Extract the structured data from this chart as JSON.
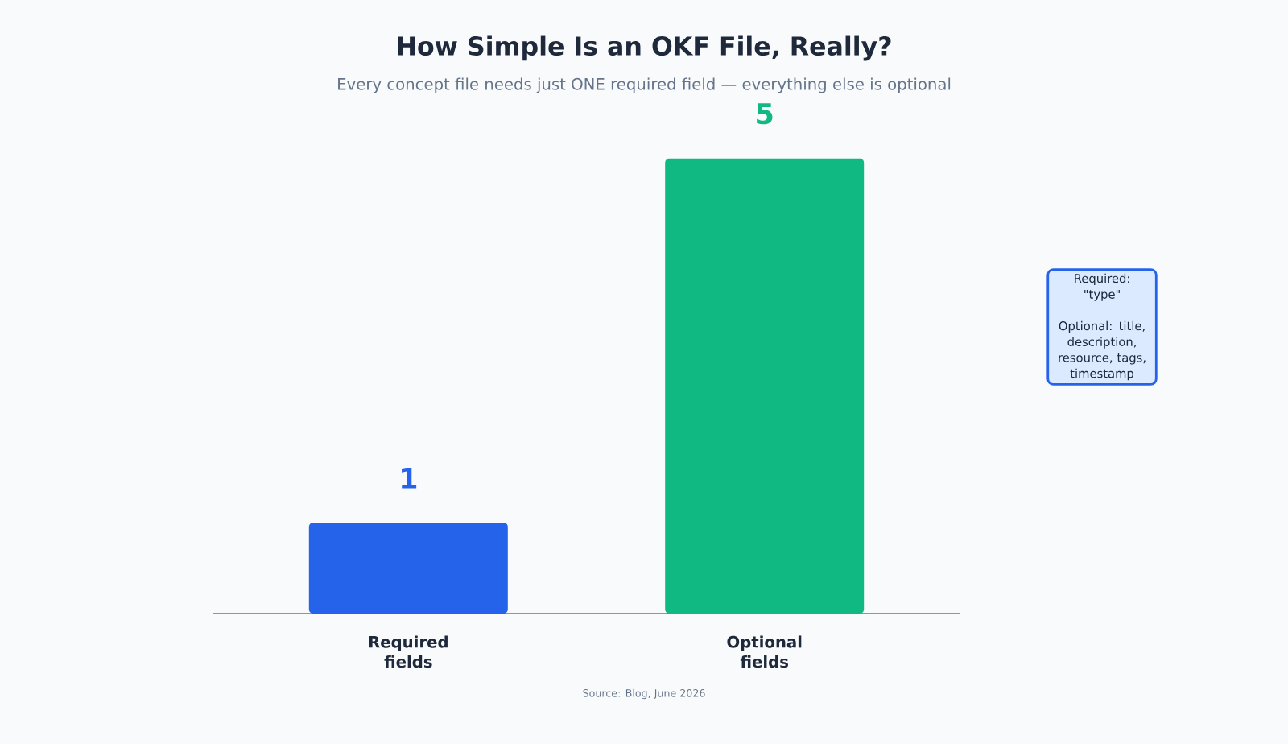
{
  "chart_data": {
    "type": "bar",
    "title": "How Simple Is an OKF File, Really?",
    "subtitle": "Every concept file needs just ONE required field — everything else is optional",
    "categories": [
      "Required fields",
      "Optional fields"
    ],
    "values": [
      1,
      5
    ],
    "colors": [
      "#2563eb",
      "#10b981"
    ],
    "data_labels": true,
    "annotations": [
      "Required: \"type\"",
      "Optional: title, description, resource, tags, timestamp",
      "Source: Blog, June 2026"
    ]
  }
}
